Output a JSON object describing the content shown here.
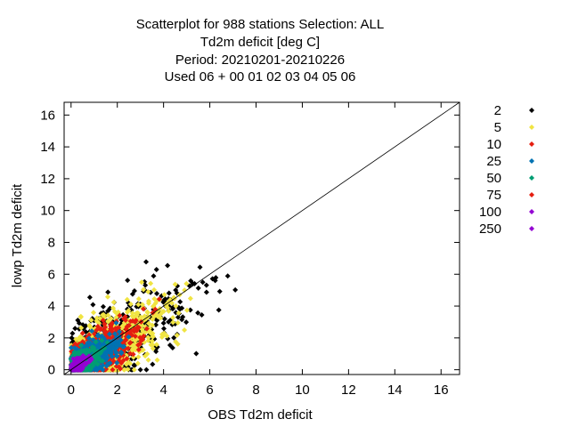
{
  "chart_data": {
    "type": "scatter",
    "title": [
      "Scatterplot for  988 stations Selection: ALL",
      "Td2m deficit [deg C]",
      "Period: 20210201-20210226",
      "Used  06  + 00 01 02 03 04 05 06"
    ],
    "xlabel": "OBS Td2m deficit",
    "ylabel": "lowp Td2m deficit",
    "xlim": [
      -0.3,
      16.8
    ],
    "ylim": [
      -0.3,
      16.8
    ],
    "xticks": [
      0,
      2,
      4,
      6,
      8,
      10,
      12,
      14,
      16
    ],
    "yticks": [
      0,
      2,
      4,
      6,
      8,
      10,
      12,
      14,
      16
    ],
    "diagonal": true,
    "grid": false,
    "legend_placement": "right",
    "series": [
      {
        "name": "2",
        "color": "#000000"
      },
      {
        "name": "5",
        "color": "#f0e442"
      },
      {
        "name": "10",
        "color": "#e51e10"
      },
      {
        "name": "25",
        "color": "#0072b2"
      },
      {
        "name": "50",
        "color": "#009e73"
      },
      {
        "name": "75",
        "color": "#e51e10"
      },
      {
        "name": "100",
        "color": "#9400d3"
      },
      {
        "name": "250",
        "color": "#9400d3"
      }
    ]
  }
}
